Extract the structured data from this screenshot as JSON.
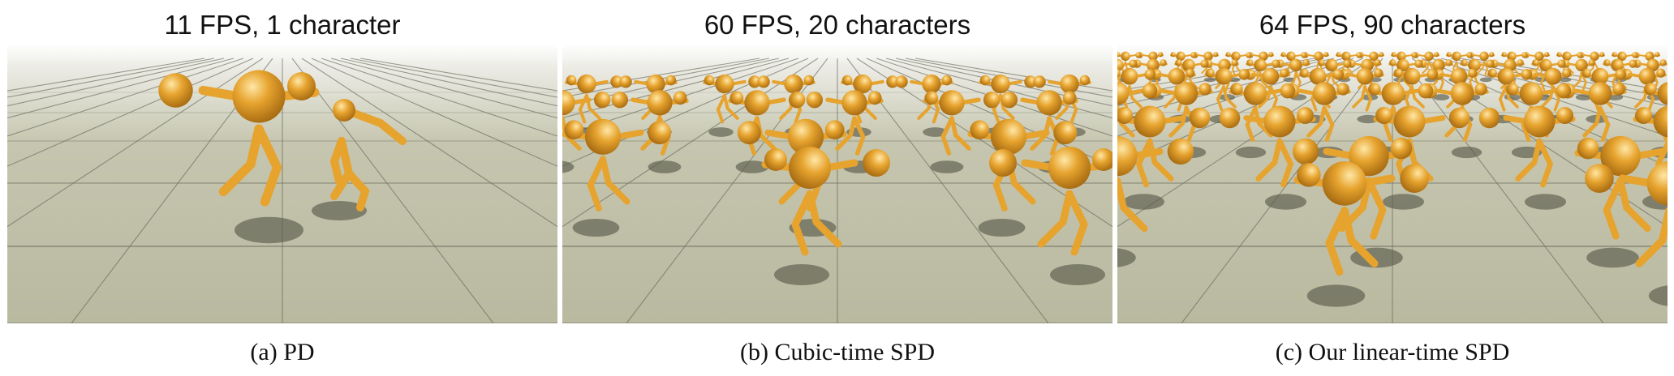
{
  "figure": {
    "panels": [
      {
        "title": "11 FPS, 1 character",
        "caption": "(a) PD",
        "characters": 1
      },
      {
        "title": "60 FPS, 20 characters",
        "caption": "(b) Cubic-time SPD",
        "characters": 20
      },
      {
        "title": "64 FPS, 90 characters",
        "caption": "(c) Our linear-time SPD",
        "characters": 90
      }
    ],
    "colors": {
      "floor": "#b9b9a0",
      "grid": "#5f6052",
      "character": "#e6a32e",
      "shadow": "#5b5b4c"
    }
  }
}
